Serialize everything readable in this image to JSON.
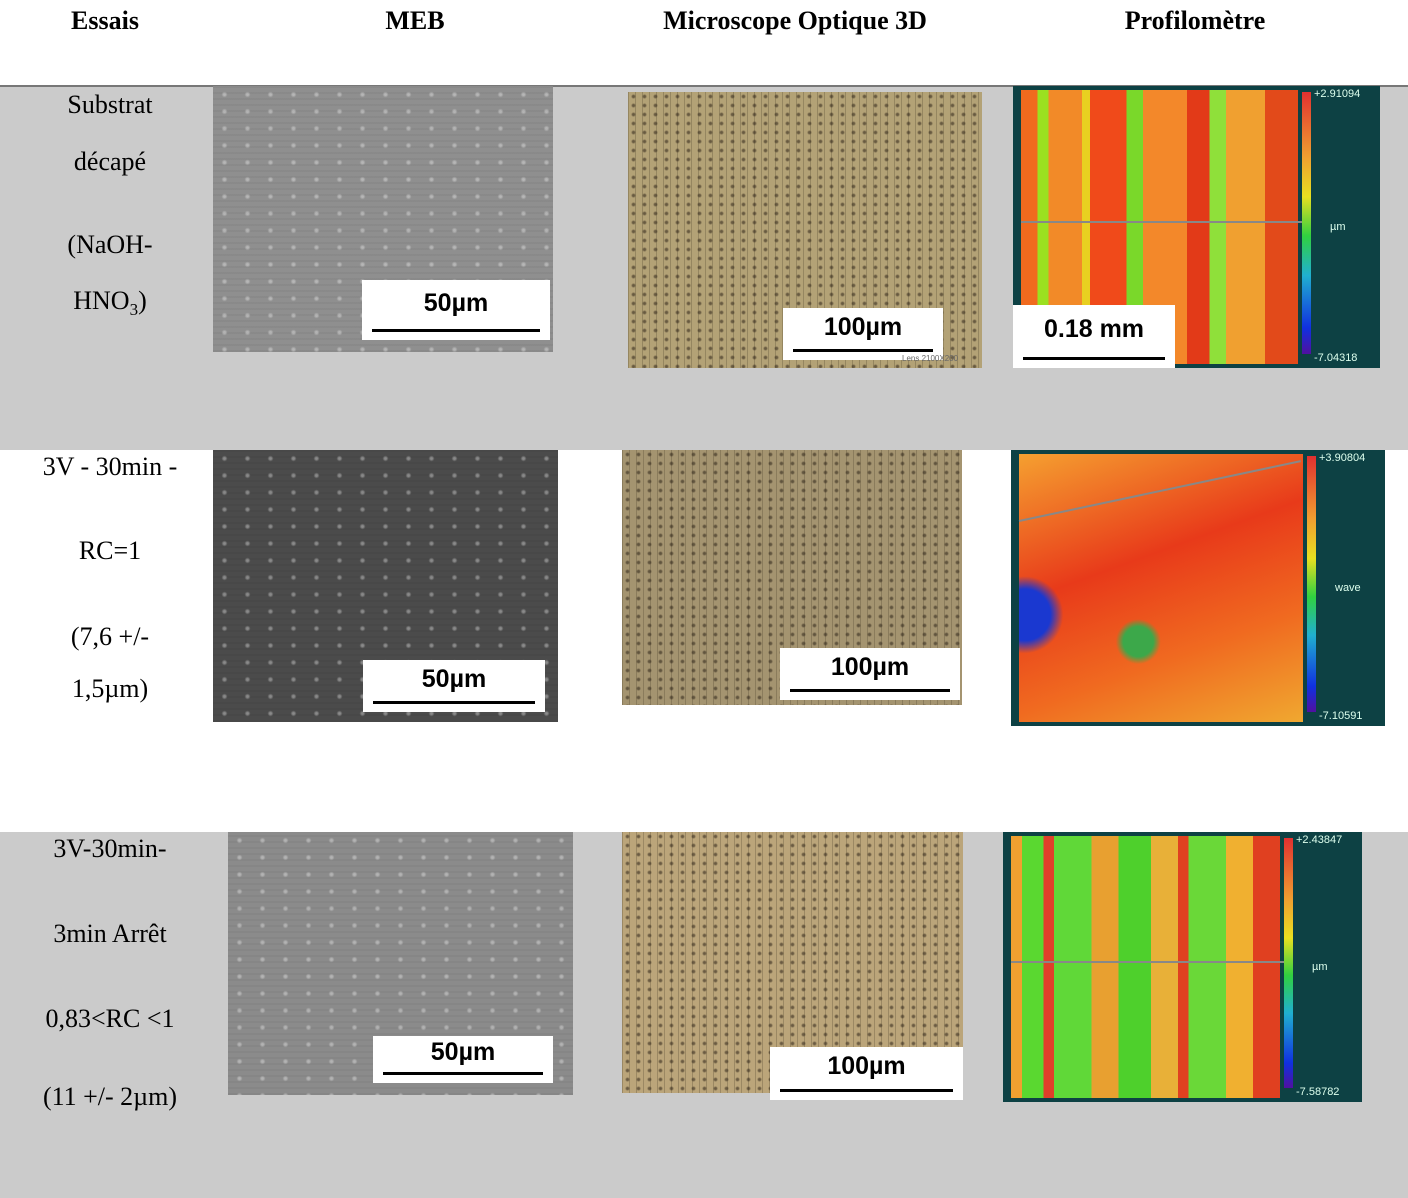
{
  "header": {
    "columns": [
      "Essais",
      "MEB",
      "Microscope Optique 3D",
      "Profilomètre"
    ]
  },
  "rows": [
    {
      "label_lines": [
        "Substrat",
        "décapé",
        "(NaOH-",
        {
          "text": "HNO",
          "sub": "3",
          "tail": ")"
        }
      ],
      "meb_scale": "50µm",
      "optical_scale": "100µm",
      "optical_note": "Lens 2100X200",
      "profilometer": {
        "scale": "0.18 mm",
        "max": "+2.91094",
        "unit": "µm",
        "min": "-7.04318"
      }
    },
    {
      "label_lines": [
        "3V - 30min -",
        "RC=1",
        "(7,6 +/-",
        "1,5µm)"
      ],
      "meb_scale": "50µm",
      "optical_scale": "100µm",
      "profilometer": {
        "max": "+3.90804",
        "unit": "wave",
        "min": "-7.10591"
      }
    },
    {
      "label_lines": [
        "3V-30min-",
        "3min Arrêt",
        "0,83<RC <1",
        "(11 +/- 2µm)"
      ],
      "meb_scale": "50µm",
      "optical_scale": "100µm",
      "profilometer": {
        "max": "+2.43847",
        "unit": "µm",
        "min": "-7.58782"
      }
    }
  ]
}
